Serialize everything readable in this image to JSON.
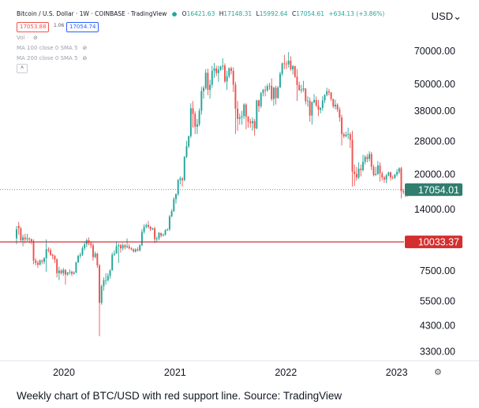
{
  "header": {
    "title": "Bitcoin / U.S. Dollar · 1W · COINBASE · TradingView",
    "ohlc": [
      {
        "label": "O",
        "value": "16421.63"
      },
      {
        "label": "H",
        "value": "17148.31"
      },
      {
        "label": "L",
        "value": "15992.64"
      },
      {
        "label": "C",
        "value": "17054.61"
      }
    ],
    "change": "+634.13 (+3.86%)",
    "sell_price": "17053.88",
    "spread": "1.06",
    "buy_price": "17054.74"
  },
  "indicators": {
    "vol": "Vol ·",
    "ma100": "MA 100 close 0 SMA 5",
    "ma200": "MA 200 close 0 SMA 5"
  },
  "axis_currency": "USD",
  "caption": "Weekly chart of BTC/USD with red support line. Source: TradingView",
  "colors": {
    "up": "#26a69a",
    "down": "#ef5350",
    "support": "#d32f2f",
    "last_price": "#2f7e6f"
  },
  "chart_data": {
    "type": "candlestick",
    "title": "Bitcoin / U.S. Dollar · 1W · COINBASE · TradingView",
    "yscale": "log",
    "ylim": [
      3000,
      85000
    ],
    "y_ticks": [
      {
        "value": 70000,
        "label": "70000.00"
      },
      {
        "value": 50000,
        "label": "50000.00"
      },
      {
        "value": 38000,
        "label": "38000.00"
      },
      {
        "value": 28000,
        "label": "28000.00"
      },
      {
        "value": 20000,
        "label": "20000.00"
      },
      {
        "value": 14000,
        "label": "14000.00"
      },
      {
        "value": 7500,
        "label": "7500.00"
      },
      {
        "value": 5500,
        "label": "5500.00"
      },
      {
        "value": 4300,
        "label": "4300.00"
      },
      {
        "value": 3300,
        "label": "3300.00"
      }
    ],
    "x_ticks": [
      "2020",
      "2021",
      "2022",
      "2023"
    ],
    "xlim": [
      "2019-07-29",
      "2023-01-20"
    ],
    "start_date": "2019-07-29",
    "support_level": {
      "value": 10033.37,
      "label": "10033.37"
    },
    "last_price": {
      "value": 17054.01,
      "label": "17054.01"
    },
    "candles": [
      [
        10400,
        11400,
        9800,
        11800
      ],
      [
        11800,
        11500,
        10800,
        12300
      ],
      [
        11500,
        10200,
        10000,
        11700
      ],
      [
        10200,
        10500,
        9600,
        10800
      ],
      [
        10500,
        10300,
        9900,
        10900
      ],
      [
        10300,
        10400,
        10100,
        10900
      ],
      [
        10400,
        10300,
        9900,
        10500
      ],
      [
        10300,
        10100,
        9800,
        10400
      ],
      [
        10100,
        8300,
        8000,
        10300
      ],
      [
        8300,
        8100,
        7900,
        8500
      ],
      [
        8100,
        7950,
        7700,
        8300
      ],
      [
        7950,
        8300,
        7900,
        8400
      ],
      [
        8300,
        8200,
        8000,
        8400
      ],
      [
        8200,
        8500,
        8000,
        8600
      ],
      [
        8500,
        9300,
        7400,
        10300
      ],
      [
        9300,
        9200,
        9000,
        9500
      ],
      [
        9200,
        8800,
        8700,
        9400
      ],
      [
        8800,
        8700,
        8400,
        8900
      ],
      [
        8700,
        8400,
        8100,
        8800
      ],
      [
        8400,
        7300,
        7000,
        8500
      ],
      [
        7300,
        7500,
        6800,
        7800
      ],
      [
        7500,
        7300,
        7200,
        7600
      ],
      [
        7300,
        7550,
        7100,
        7700
      ],
      [
        7550,
        7200,
        6500,
        7600
      ],
      [
        7200,
        7350,
        7100,
        7400
      ],
      [
        7350,
        7400,
        7200,
        7600
      ],
      [
        7400,
        7250,
        7100,
        7500
      ],
      [
        7250,
        7350,
        7200,
        7450
      ],
      [
        7350,
        8150,
        7300,
        8200
      ],
      [
        8150,
        8700,
        8100,
        8800
      ],
      [
        8700,
        8800,
        8500,
        9000
      ],
      [
        8800,
        9400,
        8700,
        9600
      ],
      [
        9400,
        9800,
        9200,
        10100
      ],
      [
        9800,
        10200,
        9500,
        10400
      ],
      [
        10200,
        9900,
        9700,
        10500
      ],
      [
        9900,
        9700,
        9400,
        10100
      ],
      [
        9700,
        8600,
        8300,
        9900
      ],
      [
        8600,
        8900,
        8500,
        9100
      ],
      [
        8900,
        7900,
        7700,
        9000
      ],
      [
        7900,
        5400,
        3850,
        8000
      ],
      [
        5400,
        6400,
        5300,
        6500
      ],
      [
        6400,
        6800,
        6100,
        7000
      ],
      [
        6800,
        6800,
        6500,
        7300
      ],
      [
        6800,
        7100,
        6700,
        7300
      ],
      [
        7100,
        7500,
        6900,
        7600
      ],
      [
        7500,
        8800,
        7500,
        9000
      ],
      [
        8800,
        8900,
        8700,
        9200
      ],
      [
        8900,
        9600,
        8900,
        10000
      ],
      [
        9600,
        9700,
        8100,
        9900
      ],
      [
        9700,
        9400,
        9000,
        9800
      ],
      [
        9400,
        9700,
        9200,
        9900
      ],
      [
        9700,
        9500,
        9300,
        9800
      ],
      [
        9500,
        9600,
        9400,
        10400
      ],
      [
        9600,
        9400,
        9300,
        9800
      ],
      [
        9400,
        9300,
        9200,
        9500
      ],
      [
        9300,
        9100,
        9000,
        9400
      ],
      [
        9100,
        9300,
        9000,
        9400
      ],
      [
        9300,
        9200,
        9100,
        9500
      ],
      [
        9200,
        9700,
        9100,
        9800
      ],
      [
        9700,
        11100,
        9600,
        11400
      ],
      [
        11100,
        11700,
        10900,
        12000
      ],
      [
        11700,
        11900,
        11500,
        12100
      ],
      [
        11900,
        11700,
        11500,
        12400
      ],
      [
        11700,
        11400,
        11200,
        11800
      ],
      [
        11400,
        11500,
        11300,
        11600
      ],
      [
        11500,
        10300,
        9900,
        11700
      ],
      [
        10300,
        10400,
        10000,
        10600
      ],
      [
        10400,
        11000,
        10200,
        11100
      ],
      [
        11000,
        10700,
        10500,
        10900
      ],
      [
        10700,
        10800,
        10600,
        10900
      ],
      [
        10800,
        11300,
        10700,
        11400
      ],
      [
        11300,
        11400,
        11200,
        11500
      ],
      [
        11400,
        13000,
        11200,
        13200
      ],
      [
        13000,
        13700,
        12900,
        14000
      ],
      [
        13700,
        15500,
        13600,
        15800
      ],
      [
        15500,
        16300,
        14800,
        16400
      ],
      [
        16300,
        18800,
        16000,
        19000
      ],
      [
        18800,
        19100,
        18000,
        19500
      ],
      [
        19100,
        18800,
        17600,
        19400
      ],
      [
        18800,
        23800,
        18600,
        24000
      ],
      [
        23800,
        26500,
        23500,
        28000
      ],
      [
        26500,
        29400,
        26000,
        29500
      ],
      [
        29400,
        39000,
        28800,
        41000
      ],
      [
        39000,
        36800,
        32000,
        41900
      ],
      [
        36800,
        32300,
        30000,
        37800
      ],
      [
        32300,
        33100,
        30000,
        35000
      ],
      [
        33100,
        38000,
        32500,
        39000
      ],
      [
        38000,
        46400,
        36500,
        48500
      ],
      [
        46400,
        47900,
        43000,
        49000
      ],
      [
        47900,
        55900,
        47000,
        58000
      ],
      [
        55900,
        47000,
        44500,
        58300
      ],
      [
        47000,
        49500,
        43000,
        52000
      ],
      [
        49500,
        57000,
        48000,
        60000
      ],
      [
        57000,
        58400,
        53000,
        61700
      ],
      [
        58400,
        55700,
        54000,
        60000
      ],
      [
        55700,
        57600,
        51000,
        60000
      ],
      [
        57600,
        59500,
        57000,
        60000
      ],
      [
        59500,
        60100,
        57500,
        64800
      ],
      [
        60100,
        51200,
        50500,
        61500
      ],
      [
        51200,
        54000,
        47000,
        57000
      ],
      [
        54000,
        58500,
        53000,
        59000
      ],
      [
        58500,
        57000,
        55000,
        59500
      ],
      [
        57000,
        49500,
        46000,
        59000
      ],
      [
        49500,
        38800,
        30000,
        51000
      ],
      [
        38800,
        35000,
        31000,
        42000
      ],
      [
        35000,
        35600,
        33000,
        37000
      ],
      [
        35600,
        36000,
        33000,
        38000
      ],
      [
        36000,
        40500,
        35000,
        41000
      ],
      [
        40500,
        35800,
        31500,
        41000
      ],
      [
        35800,
        34000,
        32000,
        36000
      ],
      [
        34000,
        33500,
        32000,
        35000
      ],
      [
        33500,
        34200,
        31000,
        35500
      ],
      [
        34200,
        31800,
        29500,
        35000
      ],
      [
        31800,
        42200,
        31500,
        42500
      ],
      [
        42200,
        39800,
        37500,
        42500
      ],
      [
        39800,
        45500,
        39000,
        46000
      ],
      [
        45500,
        47000,
        44000,
        47500
      ],
      [
        47000,
        46700,
        44000,
        49000
      ],
      [
        46700,
        48800,
        46000,
        50000
      ],
      [
        48800,
        49000,
        47000,
        50500
      ],
      [
        49000,
        42800,
        42000,
        52800
      ],
      [
        42800,
        48000,
        40000,
        48500
      ],
      [
        48000,
        43200,
        40500,
        49000
      ],
      [
        43200,
        48100,
        43000,
        49000
      ],
      [
        48100,
        55300,
        48000,
        56500
      ],
      [
        55300,
        61500,
        54000,
        62000
      ],
      [
        61500,
        61300,
        58000,
        67000
      ],
      [
        61300,
        60900,
        58000,
        63000
      ],
      [
        60900,
        63200,
        59000,
        69000
      ],
      [
        63200,
        57900,
        57000,
        66000
      ],
      [
        57900,
        59800,
        55000,
        60500
      ],
      [
        59800,
        53700,
        53000,
        60000
      ],
      [
        53700,
        49300,
        42000,
        58000
      ],
      [
        49300,
        46700,
        47000,
        51000
      ],
      [
        46700,
        47100,
        45500,
        49500
      ],
      [
        47100,
        47700,
        46000,
        51500
      ],
      [
        47700,
        41900,
        40500,
        47500
      ],
      [
        41900,
        42100,
        39600,
        44000
      ],
      [
        42100,
        36200,
        34000,
        43500
      ],
      [
        36200,
        41500,
        33000,
        41800
      ],
      [
        41500,
        42400,
        41000,
        45000
      ],
      [
        42400,
        40000,
        39500,
        44000
      ],
      [
        40000,
        38400,
        36000,
        42500
      ],
      [
        38400,
        39100,
        37000,
        39500
      ],
      [
        39100,
        42200,
        38000,
        44000
      ],
      [
        42200,
        44600,
        41000,
        45000
      ],
      [
        44600,
        46300,
        44000,
        48000
      ],
      [
        46300,
        45800,
        44500,
        47500
      ],
      [
        45800,
        42800,
        42000,
        46000
      ],
      [
        42800,
        39700,
        39000,
        43000
      ],
      [
        39700,
        40400,
        38500,
        42500
      ],
      [
        40400,
        38500,
        37500,
        41000
      ],
      [
        38500,
        35500,
        34000,
        39500
      ],
      [
        35500,
        30000,
        26700,
        36500
      ],
      [
        30000,
        29300,
        28800,
        30500
      ],
      [
        29300,
        29800,
        29000,
        30700
      ],
      [
        29800,
        30000,
        28500,
        32000
      ],
      [
        30000,
        28300,
        26000,
        30500
      ],
      [
        28300,
        20500,
        17600,
        31000
      ],
      [
        20500,
        20000,
        17700,
        22000
      ],
      [
        20000,
        19300,
        18700,
        21500
      ],
      [
        19300,
        21100,
        19000,
        22500
      ],
      [
        21100,
        20800,
        19500,
        22000
      ],
      [
        20800,
        22600,
        20500,
        24300
      ],
      [
        22600,
        23800,
        22000,
        24200
      ],
      [
        23800,
        23300,
        22500,
        24500
      ],
      [
        23300,
        24500,
        22700,
        25200
      ],
      [
        24500,
        21500,
        20800,
        25000
      ],
      [
        21500,
        19800,
        19500,
        22000
      ],
      [
        19800,
        20000,
        19600,
        21500
      ],
      [
        20000,
        21800,
        19800,
        22800
      ],
      [
        21800,
        20100,
        18500,
        22500
      ],
      [
        20100,
        19300,
        18700,
        20500
      ],
      [
        19300,
        18900,
        18300,
        19600
      ],
      [
        18900,
        19700,
        18200,
        20000
      ],
      [
        19700,
        20300,
        19500,
        20500
      ],
      [
        20300,
        19300,
        18700,
        20500
      ],
      [
        19300,
        19200,
        18900,
        19700
      ],
      [
        19200,
        19900,
        19000,
        20000
      ],
      [
        19900,
        20400,
        19500,
        21000
      ],
      [
        20400,
        21200,
        20000,
        21400
      ],
      [
        21200,
        16800,
        15600,
        21500
      ],
      [
        16800,
        16600,
        16300,
        17200
      ],
      [
        16600,
        16400,
        15800,
        17000
      ],
      [
        16400,
        16500,
        15900,
        16800
      ],
      [
        16421.63,
        17054.61,
        15992.64,
        17148.31
      ]
    ]
  }
}
